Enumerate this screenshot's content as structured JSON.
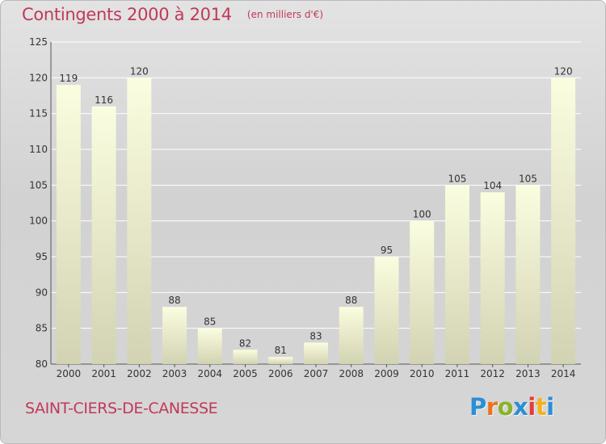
{
  "header": {
    "title": "Contingents 2000 à 2014",
    "unit": "(en milliers d'€)"
  },
  "footer": {
    "commune": "SAINT-CIERS-DE-CANESSE",
    "brand_letters": [
      "P",
      "r",
      "o",
      "x",
      "i",
      "t",
      "i"
    ]
  },
  "colors": {
    "title": "#c0395a",
    "bar_top": "#fbfde0",
    "bar_bottom": "#d2d3b2",
    "grid": "#ffffff"
  },
  "chart_data": {
    "type": "bar",
    "title": "Contingents 2000 à 2014",
    "subtitle": "(en milliers d'€)",
    "categories": [
      "2000",
      "2001",
      "2002",
      "2003",
      "2004",
      "2005",
      "2006",
      "2007",
      "2008",
      "2009",
      "2010",
      "2011",
      "2012",
      "2013",
      "2014"
    ],
    "values": [
      119,
      116,
      120,
      88,
      85,
      82,
      81,
      83,
      88,
      95,
      100,
      105,
      104,
      105,
      120
    ],
    "ylim": [
      80,
      125
    ],
    "yticks": [
      80,
      85,
      90,
      95,
      100,
      105,
      110,
      115,
      120,
      125
    ],
    "grid": true,
    "data_labels": true
  }
}
